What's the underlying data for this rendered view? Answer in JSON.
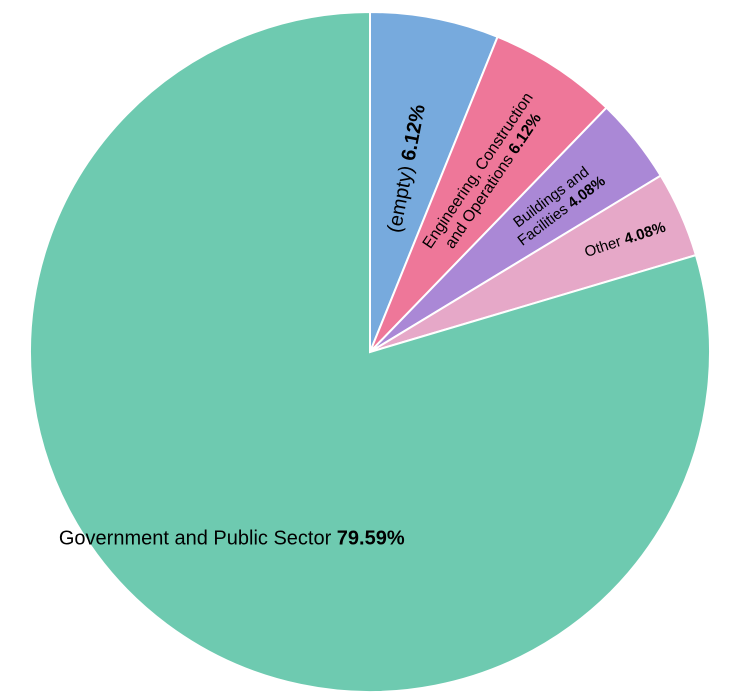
{
  "chart_data": {
    "type": "pie",
    "slices": [
      {
        "label_lines": [
          "(empty)"
        ],
        "value": 6.12,
        "value_label": "6.12%",
        "color": "#77aadd"
      },
      {
        "label_lines": [
          "Engineering, Construction",
          "and Operations"
        ],
        "value": 6.12,
        "value_label": "6.12%",
        "color": "#ee7799"
      },
      {
        "label_lines": [
          "Buildings and",
          "Facilities"
        ],
        "value": 4.08,
        "value_label": "4.08%",
        "color": "#aa88d6"
      },
      {
        "label_lines": [
          "Other"
        ],
        "value": 4.08,
        "value_label": "4.08%",
        "color": "#e6a8c8"
      },
      {
        "label_lines": [
          "Government and Public Sector"
        ],
        "value": 79.59,
        "value_label": "79.59%",
        "color": "#6ecab0"
      }
    ],
    "start_angle_deg": 0,
    "direction": "clockwise"
  }
}
